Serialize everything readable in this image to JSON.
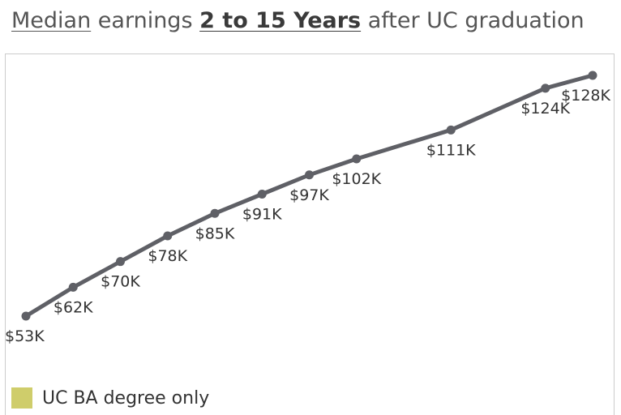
{
  "title": {
    "part1": "Median",
    "part2": " earnings ",
    "part3": "2 to 15 Years",
    "part4": " after UC graduation"
  },
  "legend": {
    "label": "UC BA degree only",
    "color": "#cfcd6b"
  },
  "chart_data": {
    "type": "line",
    "title": "Median earnings 2 to 15 Years after UC graduation",
    "xlabel": "",
    "ylabel": "",
    "x": [
      2,
      3,
      4,
      5,
      6,
      7,
      8,
      9,
      11,
      13,
      14
    ],
    "series": [
      {
        "name": "UC BA degree only",
        "values": [
          53,
          62,
          70,
          78,
          85,
          91,
          97,
          102,
          111,
          124,
          128
        ],
        "labels": [
          "$53K",
          "$62K",
          "$70K",
          "$78K",
          "$85K",
          "$91K",
          "$97K",
          "$102K",
          "$111K",
          "$124K",
          "$128K"
        ],
        "color": "#5f6066"
      }
    ],
    "xlim": [
      2,
      14
    ],
    "ylim": [
      53,
      128
    ],
    "grid": false,
    "legend_position": "bottom-left"
  }
}
